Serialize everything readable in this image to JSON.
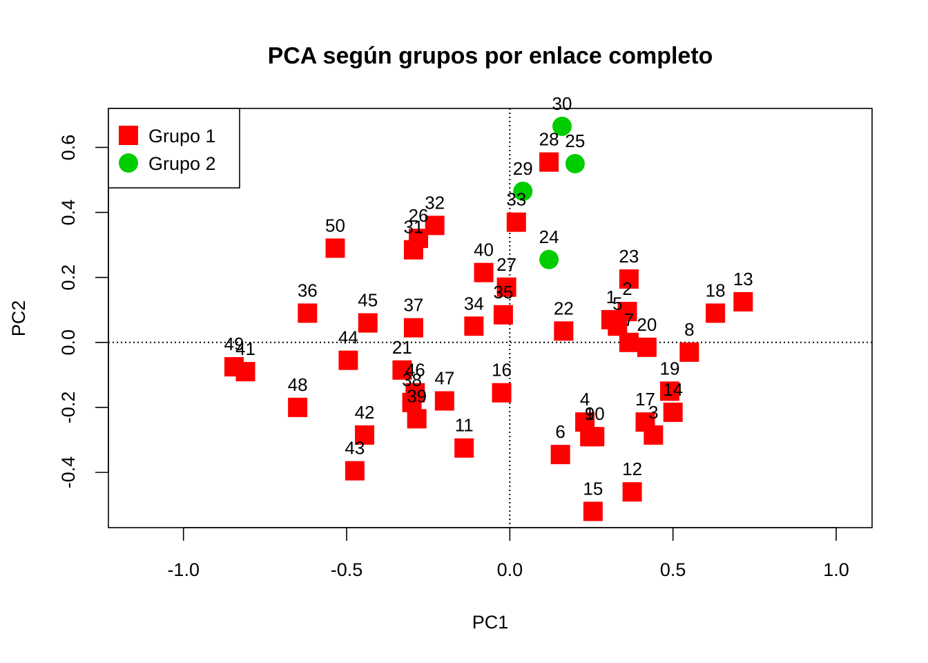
{
  "chart_data": {
    "type": "scatter",
    "title": "PCA según grupos por enlace completo",
    "xlabel": "PC1",
    "ylabel": "PC2",
    "xlim": [
      -1.23,
      1.11
    ],
    "ylim": [
      -0.57,
      0.72
    ],
    "xticks": [
      -1.0,
      -0.5,
      0.0,
      0.5,
      1.0
    ],
    "xtick_labels": [
      "-1.0",
      "-0.5",
      "0.0",
      "0.5",
      "1.0"
    ],
    "yticks": [
      -0.4,
      -0.2,
      0.0,
      0.2,
      0.4,
      0.6
    ],
    "ytick_labels": [
      "-0.4",
      "-0.2",
      "0.0",
      "0.2",
      "0.4",
      "0.6"
    ],
    "grid": false,
    "reference_lines": {
      "x": 0,
      "y": 0,
      "style": "dotted"
    },
    "legend": {
      "position": "top-left"
    },
    "series": [
      {
        "name": "Grupo 1",
        "color": "#ff0000",
        "marker": "square",
        "points": [
          {
            "label": "1",
            "x": 0.31,
            "y": 0.07
          },
          {
            "label": "2",
            "x": 0.36,
            "y": 0.095
          },
          {
            "label": "3",
            "x": 0.44,
            "y": -0.285
          },
          {
            "label": "4",
            "x": 0.23,
            "y": -0.245
          },
          {
            "label": "5",
            "x": 0.33,
            "y": 0.05
          },
          {
            "label": "6",
            "x": 0.155,
            "y": -0.345
          },
          {
            "label": "7",
            "x": 0.365,
            "y": 0.0
          },
          {
            "label": "8",
            "x": 0.55,
            "y": -0.03
          },
          {
            "label": "9",
            "x": 0.245,
            "y": -0.29
          },
          {
            "label": "10",
            "x": 0.26,
            "y": -0.29
          },
          {
            "label": "11",
            "x": -0.14,
            "y": -0.325
          },
          {
            "label": "12",
            "x": 0.375,
            "y": -0.46
          },
          {
            "label": "13",
            "x": 0.715,
            "y": 0.125
          },
          {
            "label": "14",
            "x": 0.5,
            "y": -0.215
          },
          {
            "label": "15",
            "x": 0.255,
            "y": -0.52
          },
          {
            "label": "16",
            "x": -0.025,
            "y": -0.155
          },
          {
            "label": "17",
            "x": 0.415,
            "y": -0.245
          },
          {
            "label": "18",
            "x": 0.63,
            "y": 0.09
          },
          {
            "label": "19",
            "x": 0.49,
            "y": -0.15
          },
          {
            "label": "20",
            "x": 0.42,
            "y": -0.015
          },
          {
            "label": "21",
            "x": -0.33,
            "y": -0.085
          },
          {
            "label": "22",
            "x": 0.165,
            "y": 0.035
          },
          {
            "label": "23",
            "x": 0.365,
            "y": 0.195
          },
          {
            "label": "26",
            "x": -0.28,
            "y": 0.32
          },
          {
            "label": "27",
            "x": -0.01,
            "y": 0.17
          },
          {
            "label": "28",
            "x": 0.12,
            "y": 0.555
          },
          {
            "label": "31",
            "x": -0.295,
            "y": 0.285
          },
          {
            "label": "32",
            "x": -0.23,
            "y": 0.36
          },
          {
            "label": "33",
            "x": 0.02,
            "y": 0.37
          },
          {
            "label": "34",
            "x": -0.11,
            "y": 0.05
          },
          {
            "label": "35",
            "x": -0.02,
            "y": 0.085
          },
          {
            "label": "36",
            "x": -0.62,
            "y": 0.09
          },
          {
            "label": "37",
            "x": -0.295,
            "y": 0.045
          },
          {
            "label": "38",
            "x": -0.3,
            "y": -0.185
          },
          {
            "label": "39",
            "x": -0.285,
            "y": -0.235
          },
          {
            "label": "40",
            "x": -0.08,
            "y": 0.215
          },
          {
            "label": "41",
            "x": -0.81,
            "y": -0.09
          },
          {
            "label": "42",
            "x": -0.445,
            "y": -0.285
          },
          {
            "label": "43",
            "x": -0.475,
            "y": -0.395
          },
          {
            "label": "44",
            "x": -0.495,
            "y": -0.055
          },
          {
            "label": "45",
            "x": -0.435,
            "y": 0.06
          },
          {
            "label": "46",
            "x": -0.29,
            "y": -0.155
          },
          {
            "label": "47",
            "x": -0.2,
            "y": -0.18
          },
          {
            "label": "48",
            "x": -0.65,
            "y": -0.2
          },
          {
            "label": "49",
            "x": -0.845,
            "y": -0.075
          },
          {
            "label": "50",
            "x": -0.535,
            "y": 0.29
          }
        ]
      },
      {
        "name": "Grupo 2",
        "color": "#00cd00",
        "marker": "circle",
        "points": [
          {
            "label": "24",
            "x": 0.12,
            "y": 0.255
          },
          {
            "label": "25",
            "x": 0.2,
            "y": 0.55
          },
          {
            "label": "29",
            "x": 0.04,
            "y": 0.465
          },
          {
            "label": "30",
            "x": 0.16,
            "y": 0.665
          }
        ]
      }
    ]
  }
}
